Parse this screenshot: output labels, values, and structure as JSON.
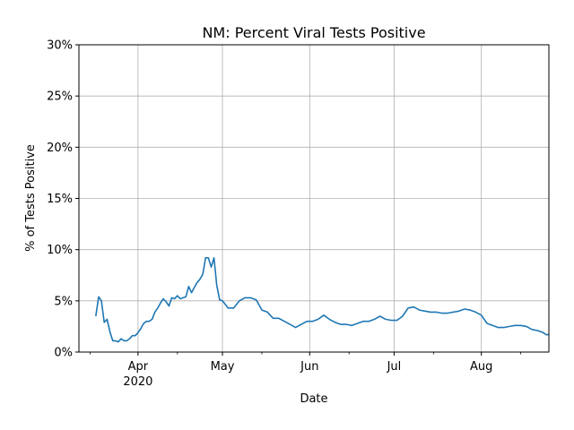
{
  "chart_data": {
    "type": "line",
    "title": "NM: Percent Viral Tests Positive",
    "xlabel": "Date",
    "ylabel": "% of Tests Positive",
    "ylabel_color": "#1f77b4",
    "line_color": "#1f77b4",
    "grid": true,
    "ylim": [
      0,
      30
    ],
    "xlim": [
      "2020-03-11",
      "2020-08-25"
    ],
    "y_ticks": [
      {
        "value": 0,
        "label": "0%"
      },
      {
        "value": 5,
        "label": "5%"
      },
      {
        "value": 10,
        "label": "10%"
      },
      {
        "value": 15,
        "label": "15%"
      },
      {
        "value": 20,
        "label": "20%"
      },
      {
        "value": 25,
        "label": "25%"
      },
      {
        "value": 30,
        "label": "30%"
      }
    ],
    "x_ticks": [
      {
        "date": "2020-04-01",
        "label": "Apr",
        "sublabel": "2020"
      },
      {
        "date": "2020-05-01",
        "label": "May",
        "sublabel": ""
      },
      {
        "date": "2020-06-01",
        "label": "Jun",
        "sublabel": ""
      },
      {
        "date": "2020-07-01",
        "label": "Jul",
        "sublabel": ""
      },
      {
        "date": "2020-08-01",
        "label": "Aug",
        "sublabel": ""
      }
    ],
    "x_minor_ticks": [
      "2020-03-15",
      "2020-04-15",
      "2020-05-15",
      "2020-06-15",
      "2020-07-15",
      "2020-08-15"
    ],
    "series": [
      {
        "x": [
          "2020-03-17",
          "2020-03-18",
          "2020-03-19",
          "2020-03-20",
          "2020-03-21",
          "2020-03-22",
          "2020-03-23",
          "2020-03-24",
          "2020-03-25",
          "2020-03-26",
          "2020-03-27",
          "2020-03-28",
          "2020-03-29",
          "2020-03-30",
          "2020-03-31",
          "2020-04-01",
          "2020-04-02",
          "2020-04-03",
          "2020-04-04",
          "2020-04-05",
          "2020-04-06",
          "2020-04-07",
          "2020-04-08",
          "2020-04-09",
          "2020-04-10",
          "2020-04-11",
          "2020-04-12",
          "2020-04-13",
          "2020-04-14",
          "2020-04-15",
          "2020-04-16",
          "2020-04-17",
          "2020-04-18",
          "2020-04-19",
          "2020-04-20",
          "2020-04-21",
          "2020-04-22",
          "2020-04-23",
          "2020-04-24",
          "2020-04-25",
          "2020-04-26",
          "2020-04-27",
          "2020-04-28",
          "2020-04-29",
          "2020-04-30",
          "2020-05-01",
          "2020-05-03",
          "2020-05-05",
          "2020-05-07",
          "2020-05-09",
          "2020-05-11",
          "2020-05-13",
          "2020-05-15",
          "2020-05-17",
          "2020-05-19",
          "2020-05-21",
          "2020-05-23",
          "2020-05-25",
          "2020-05-27",
          "2020-05-29",
          "2020-05-31",
          "2020-06-02",
          "2020-06-04",
          "2020-06-06",
          "2020-06-08",
          "2020-06-10",
          "2020-06-12",
          "2020-06-14",
          "2020-06-16",
          "2020-06-18",
          "2020-06-20",
          "2020-06-22",
          "2020-06-24",
          "2020-06-26",
          "2020-06-28",
          "2020-06-30",
          "2020-07-02",
          "2020-07-04",
          "2020-07-06",
          "2020-07-08",
          "2020-07-10",
          "2020-07-12",
          "2020-07-14",
          "2020-07-16",
          "2020-07-18",
          "2020-07-20",
          "2020-07-22",
          "2020-07-24",
          "2020-07-26",
          "2020-07-28",
          "2020-07-30",
          "2020-08-01",
          "2020-08-03",
          "2020-08-05",
          "2020-08-07",
          "2020-08-09",
          "2020-08-11",
          "2020-08-13",
          "2020-08-15",
          "2020-08-17",
          "2020-08-19",
          "2020-08-21",
          "2020-08-23",
          "2020-08-24",
          "2020-08-25"
        ],
        "y": [
          3.5,
          5.4,
          5.0,
          2.9,
          3.2,
          2.0,
          1.1,
          1.1,
          1.0,
          1.3,
          1.1,
          1.1,
          1.3,
          1.6,
          1.6,
          1.9,
          2.3,
          2.8,
          3.0,
          3.0,
          3.2,
          3.9,
          4.3,
          4.8,
          5.2,
          4.9,
          4.5,
          5.3,
          5.2,
          5.5,
          5.2,
          5.3,
          5.4,
          6.4,
          5.8,
          6.3,
          6.8,
          7.1,
          7.6,
          9.2,
          9.2,
          8.3,
          9.2,
          6.5,
          5.1,
          5.0,
          4.3,
          4.3,
          5.0,
          5.3,
          5.3,
          5.1,
          4.1,
          3.9,
          3.3,
          3.3,
          3.0,
          2.7,
          2.4,
          2.7,
          3.0,
          3.0,
          3.2,
          3.6,
          3.2,
          2.9,
          2.7,
          2.7,
          2.6,
          2.8,
          3.0,
          3.0,
          3.2,
          3.5,
          3.2,
          3.1,
          3.1,
          3.5,
          4.3,
          4.4,
          4.1,
          4.0,
          3.9,
          3.9,
          3.8,
          3.8,
          3.9,
          4.0,
          4.2,
          4.1,
          3.9,
          3.6,
          2.8,
          2.6,
          2.4,
          2.4,
          2.5,
          2.6,
          2.6,
          2.5,
          2.2,
          2.1,
          1.9,
          1.7,
          1.7
        ]
      }
    ]
  }
}
